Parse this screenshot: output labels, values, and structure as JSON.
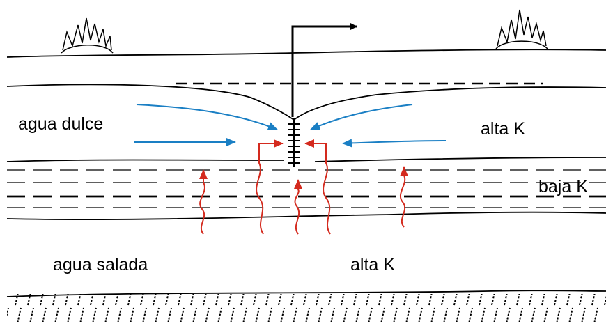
{
  "labels": {
    "fresh_water": "agua dulce",
    "upper_high_k": "alta K",
    "low_k": "baja K",
    "salt_water": "agua salada",
    "lower_high_k": "alta K"
  },
  "colors": {
    "fresh_flow_arrow": "#1a7fc4",
    "saline_upconing_arrow": "#d42a1e",
    "outline": "#000000",
    "background": "#ffffff"
  },
  "icons": {
    "vegetation": "shrub-icon",
    "well": "pumping-well-icon",
    "discharge": "discharge-arrow-icon"
  }
}
